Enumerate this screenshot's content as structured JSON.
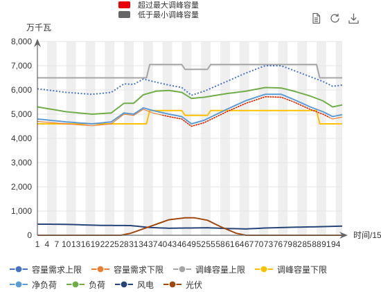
{
  "top_legend": [
    {
      "name": "超过最大调峰容量",
      "color": "#e8000b"
    },
    {
      "name": "低于最小调峰容量",
      "color": "#666666"
    }
  ],
  "toolbox": [
    {
      "name": "data-view",
      "icon": "document-icon"
    },
    {
      "name": "restore",
      "icon": "refresh-icon"
    },
    {
      "name": "save-as-image",
      "icon": "download-icon"
    }
  ],
  "chart_data": {
    "type": "line",
    "ylabel": "万千瓦",
    "xlabel": "时间/15",
    "ylim": [
      0,
      8000
    ],
    "yticks": [
      0,
      1000,
      2000,
      3000,
      4000,
      5000,
      6000,
      7000,
      8000
    ],
    "ytick_labels": [
      "0",
      "1,000",
      "2,000",
      "3,000",
      "4,000",
      "5,000",
      "6,000",
      "7,000",
      "8,000"
    ],
    "xlim": [
      1,
      96
    ],
    "xtick_labels": [
      "1",
      "4",
      "7",
      "10",
      "13",
      "16",
      "19",
      "22",
      "25",
      "28",
      "31",
      "34",
      "37",
      "40",
      "43",
      "46",
      "49",
      "52",
      "55",
      "58",
      "61",
      "64",
      "67",
      "70",
      "73",
      "76",
      "79",
      "82",
      "85",
      "88",
      "91",
      "94"
    ],
    "grid": "alternating vertical bands",
    "legend_position": "bottom",
    "series": [
      {
        "name": "容量需求上限",
        "color": "#4472c4",
        "style": "dotted",
        "width": 2,
        "keypoints": [
          [
            1,
            6050
          ],
          [
            10,
            5900
          ],
          [
            18,
            5820
          ],
          [
            24,
            5900
          ],
          [
            28,
            6250
          ],
          [
            31,
            6230
          ],
          [
            34,
            6450
          ],
          [
            37,
            6350
          ],
          [
            42,
            6200
          ],
          [
            46,
            6100
          ],
          [
            49,
            5780
          ],
          [
            53,
            5950
          ],
          [
            60,
            6350
          ],
          [
            66,
            6700
          ],
          [
            72,
            7000
          ],
          [
            77,
            7000
          ],
          [
            81,
            6800
          ],
          [
            86,
            6550
          ],
          [
            90,
            6350
          ],
          [
            93,
            6150
          ],
          [
            96,
            6200
          ]
        ]
      },
      {
        "name": "容量需求下限",
        "color": "#ed7d31",
        "style": "solid",
        "width": 1.2,
        "keypoints": [
          [
            1,
            4700
          ],
          [
            10,
            4600
          ],
          [
            18,
            4520
          ],
          [
            24,
            4600
          ],
          [
            28,
            5000
          ],
          [
            31,
            4950
          ],
          [
            34,
            5200
          ],
          [
            37,
            5050
          ],
          [
            42,
            4900
          ],
          [
            46,
            4800
          ],
          [
            49,
            4500
          ],
          [
            53,
            4650
          ],
          [
            60,
            5100
          ],
          [
            66,
            5450
          ],
          [
            72,
            5720
          ],
          [
            77,
            5700
          ],
          [
            81,
            5500
          ],
          [
            86,
            5200
          ],
          [
            90,
            5000
          ],
          [
            93,
            4800
          ],
          [
            96,
            4880
          ]
        ]
      },
      {
        "name": "调峰容量上限",
        "color": "#a5a5a5",
        "style": "solid",
        "width": 2,
        "keypoints": [
          [
            1,
            6500
          ],
          [
            35,
            6500
          ],
          [
            36,
            7050
          ],
          [
            46,
            7050
          ],
          [
            47,
            6850
          ],
          [
            54,
            6850
          ],
          [
            55,
            7050
          ],
          [
            88,
            7050
          ],
          [
            89,
            6500
          ],
          [
            96,
            6500
          ]
        ]
      },
      {
        "name": "调峰容量下限",
        "color": "#ffc000",
        "style": "solid",
        "width": 2,
        "keypoints": [
          [
            1,
            4600
          ],
          [
            35,
            4600
          ],
          [
            36,
            5150
          ],
          [
            46,
            5150
          ],
          [
            47,
            4950
          ],
          [
            54,
            4950
          ],
          [
            55,
            5150
          ],
          [
            88,
            5150
          ],
          [
            89,
            4600
          ],
          [
            96,
            4600
          ]
        ]
      },
      {
        "name": "净负荷",
        "color": "#5b9bd5",
        "style": "solid",
        "width": 2,
        "keypoints": [
          [
            1,
            4800
          ],
          [
            10,
            4680
          ],
          [
            18,
            4600
          ],
          [
            24,
            4680
          ],
          [
            28,
            5050
          ],
          [
            31,
            5000
          ],
          [
            34,
            5260
          ],
          [
            37,
            5150
          ],
          [
            42,
            5000
          ],
          [
            46,
            4900
          ],
          [
            49,
            4600
          ],
          [
            53,
            4750
          ],
          [
            60,
            5200
          ],
          [
            66,
            5560
          ],
          [
            72,
            5820
          ],
          [
            77,
            5820
          ],
          [
            81,
            5600
          ],
          [
            86,
            5300
          ],
          [
            90,
            5100
          ],
          [
            93,
            4900
          ],
          [
            96,
            4980
          ]
        ]
      },
      {
        "name": "负荷",
        "color": "#70ad47",
        "style": "solid",
        "width": 2,
        "keypoints": [
          [
            1,
            5300
          ],
          [
            10,
            5100
          ],
          [
            18,
            5000
          ],
          [
            24,
            5050
          ],
          [
            28,
            5450
          ],
          [
            31,
            5450
          ],
          [
            34,
            5800
          ],
          [
            38,
            5950
          ],
          [
            42,
            5980
          ],
          [
            46,
            5900
          ],
          [
            49,
            5650
          ],
          [
            53,
            5700
          ],
          [
            60,
            5850
          ],
          [
            66,
            5950
          ],
          [
            72,
            6100
          ],
          [
            77,
            6080
          ],
          [
            81,
            5950
          ],
          [
            86,
            5750
          ],
          [
            90,
            5550
          ],
          [
            93,
            5300
          ],
          [
            96,
            5380
          ]
        ]
      },
      {
        "name": "风电",
        "color": "#264478",
        "style": "solid",
        "width": 2,
        "keypoints": [
          [
            1,
            460
          ],
          [
            10,
            450
          ],
          [
            20,
            410
          ],
          [
            30,
            400
          ],
          [
            36,
            320
          ],
          [
            42,
            290
          ],
          [
            48,
            300
          ],
          [
            54,
            310
          ],
          [
            60,
            280
          ],
          [
            66,
            260
          ],
          [
            72,
            300
          ],
          [
            80,
            330
          ],
          [
            88,
            350
          ],
          [
            96,
            380
          ]
        ]
      },
      {
        "name": "光伏",
        "color": "#9e480e",
        "style": "solid",
        "width": 2,
        "keypoints": [
          [
            1,
            0
          ],
          [
            27,
            0
          ],
          [
            30,
            80
          ],
          [
            36,
            360
          ],
          [
            42,
            640
          ],
          [
            47,
            720
          ],
          [
            50,
            720
          ],
          [
            54,
            620
          ],
          [
            58,
            360
          ],
          [
            63,
            80
          ],
          [
            66,
            0
          ],
          [
            96,
            0
          ]
        ]
      }
    ]
  }
}
